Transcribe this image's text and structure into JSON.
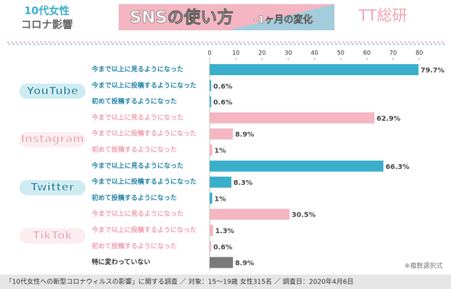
{
  "header": {
    "logo_line1": "10代女性",
    "logo_line2": "コロナ影響",
    "title": "SNSの使い方",
    "subtitle": "-1ヶ月の変化-",
    "brand": "TT総研"
  },
  "chart_data": {
    "type": "bar",
    "orientation": "horizontal",
    "xlim": [
      0,
      80
    ],
    "xticks": [
      0,
      10,
      20,
      30,
      40,
      50,
      60,
      70,
      80
    ],
    "groups": [
      {
        "name": "YouTube",
        "color": "#3aaecb",
        "label_color": "#2585a8",
        "categories": [
          "今まで以上に見るようになった",
          "今まで以上に投稿するようになった",
          "初めて投稿するようになった"
        ],
        "values": [
          79.7,
          0.6,
          0.6
        ],
        "value_labels": [
          "79.7%",
          "0.6%",
          "0.6%"
        ]
      },
      {
        "name": "Instagram",
        "color": "#f4b6c2",
        "label_color": "#f0a3b3",
        "categories": [
          "今まで以上に見るようになった",
          "今まで以上に投稿するようになった",
          "初めて投稿するようになった"
        ],
        "values": [
          62.9,
          8.9,
          1
        ],
        "value_labels": [
          "62.9%",
          "8.9%",
          "1%"
        ]
      },
      {
        "name": "Twitter",
        "color": "#3aaecb",
        "label_color": "#2585a8",
        "categories": [
          "今まで以上に見るようになった",
          "今まで以上に投稿するようになった",
          "初めて投稿するようになった"
        ],
        "values": [
          66.3,
          8.3,
          1
        ],
        "value_labels": [
          "66.3%",
          "8.3%",
          "1%"
        ]
      },
      {
        "name": "TikTok",
        "color": "#f4b6c2",
        "label_color": "#f0a3b3",
        "categories": [
          "今まで以上に見るようになった",
          "今まで以上に投稿するようになった",
          "初めて投稿するようになった"
        ],
        "values": [
          30.5,
          1.3,
          0.6
        ],
        "value_labels": [
          "30.5%",
          "1.3%",
          "0.6%"
        ]
      },
      {
        "color": "#7a7a7a",
        "label_color": "#333333",
        "categories": [
          "特に変わっていない"
        ],
        "values": [
          8.9
        ],
        "value_labels": [
          "8.9%"
        ]
      }
    ],
    "note": "※複数選択式",
    "source": "「10代女性への新型コロナウィルスの影響」に関する調査 ／ 対象：15〜19歳 女性315名 ／ 調査日：2020年4月6日"
  }
}
